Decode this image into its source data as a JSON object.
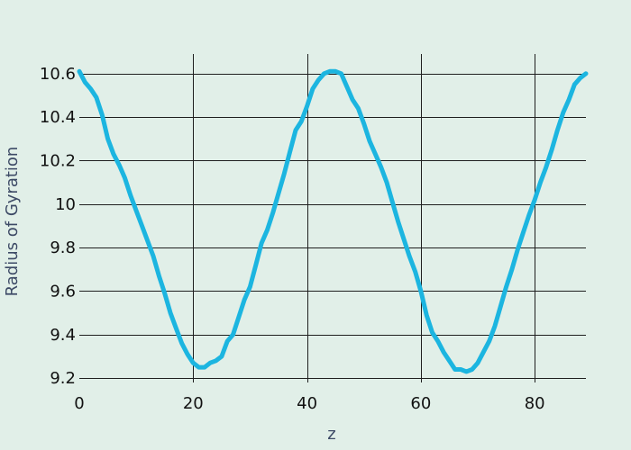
{
  "chart_data": {
    "type": "line",
    "title": "",
    "xlabel": "z",
    "ylabel": "Radius of Gyration",
    "xlim": [
      0,
      89
    ],
    "ylim": [
      9.18,
      10.69
    ],
    "x_ticks": [
      0,
      20,
      40,
      60,
      80
    ],
    "x_tick_labels": [
      "0",
      "20",
      "40",
      "60",
      "80"
    ],
    "y_ticks": [
      9.2,
      9.4,
      9.6,
      9.8,
      10.0,
      10.2,
      10.4,
      10.6
    ],
    "y_tick_labels": [
      "9.2",
      "9.4",
      "9.6",
      "9.8",
      "10",
      "10.2",
      "10.4",
      "10.6"
    ],
    "grid": true,
    "line_color": "#1cb5e0",
    "series": [
      {
        "x": [
          0,
          1,
          2,
          3,
          4,
          5,
          6,
          7,
          8,
          9,
          10,
          11,
          12,
          13,
          14,
          15,
          16,
          17,
          18,
          19,
          20,
          21,
          22,
          23,
          24,
          25,
          26,
          27,
          28,
          29,
          30,
          31,
          32,
          33,
          34,
          35,
          36,
          37,
          38,
          39,
          40,
          41,
          42,
          43,
          44,
          45,
          46,
          47,
          48,
          49,
          50,
          51,
          52,
          53,
          54,
          55,
          56,
          57,
          58,
          59,
          60,
          61,
          62,
          63,
          64,
          65,
          66,
          67,
          68,
          69,
          70,
          71,
          72,
          73,
          74,
          75,
          76,
          77,
          78,
          79,
          80,
          81,
          82,
          83,
          84,
          85,
          86,
          87,
          88,
          89
        ],
        "values": [
          10.61,
          10.56,
          10.53,
          10.49,
          10.41,
          10.3,
          10.23,
          10.18,
          10.12,
          10.04,
          9.97,
          9.9,
          9.83,
          9.76,
          9.67,
          9.59,
          9.5,
          9.43,
          9.36,
          9.31,
          9.27,
          9.25,
          9.25,
          9.27,
          9.28,
          9.3,
          9.37,
          9.4,
          9.48,
          9.56,
          9.62,
          9.72,
          9.82,
          9.88,
          9.96,
          10.05,
          10.14,
          10.24,
          10.34,
          10.38,
          10.45,
          10.53,
          10.57,
          10.6,
          10.61,
          10.61,
          10.6,
          10.54,
          10.48,
          10.44,
          10.37,
          10.29,
          10.23,
          10.17,
          10.1,
          10.01,
          9.92,
          9.84,
          9.76,
          9.69,
          9.6,
          9.49,
          9.41,
          9.37,
          9.32,
          9.28,
          9.24,
          9.24,
          9.23,
          9.24,
          9.27,
          9.32,
          9.37,
          9.44,
          9.53,
          9.62,
          9.7,
          9.79,
          9.87,
          9.95,
          10.02,
          10.1,
          10.17,
          10.25,
          10.34,
          10.42,
          10.48,
          10.55,
          10.58,
          10.6
        ]
      }
    ]
  }
}
